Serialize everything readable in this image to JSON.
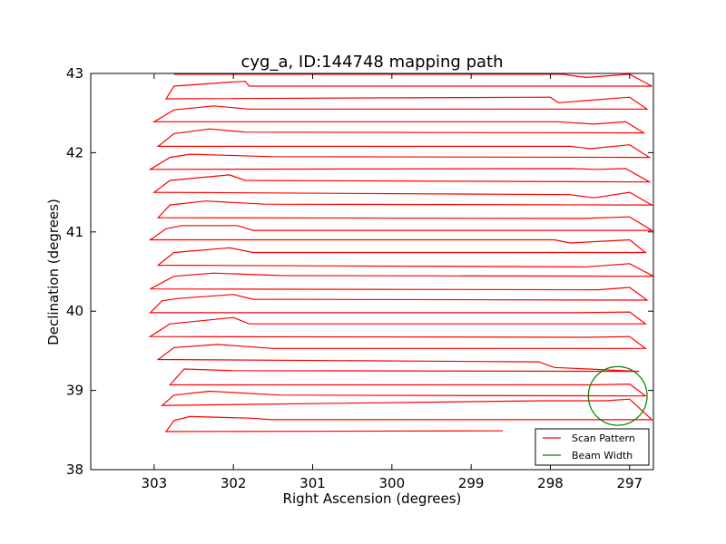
{
  "chart_data": {
    "type": "line",
    "title": "cyg_a, ID:144748 mapping path",
    "xlabel": "Right Ascension (degrees)",
    "ylabel": "Declination (degrees)",
    "xlim": [
      303.8,
      296.7
    ],
    "ylim": [
      38,
      43
    ],
    "x_ticks": [
      303,
      302,
      301,
      300,
      299,
      298,
      297
    ],
    "y_ticks": [
      38,
      39,
      40,
      41,
      42,
      43
    ],
    "grid": false,
    "legend_position": "lower-right",
    "series": [
      {
        "name": "Scan Pattern",
        "color": "#ff0000",
        "points": [
          [
            298.6,
            38.49
          ],
          [
            298.8,
            38.49
          ],
          [
            302.85,
            38.48
          ],
          [
            302.75,
            38.62
          ],
          [
            302.55,
            38.67
          ],
          [
            301.8,
            38.65
          ],
          [
            301.5,
            38.63
          ],
          [
            296.72,
            38.63
          ],
          [
            297.0,
            38.89
          ],
          [
            297.3,
            38.87
          ],
          [
            298.1,
            38.87
          ],
          [
            302.9,
            38.81
          ],
          [
            302.75,
            38.94
          ],
          [
            302.3,
            38.99
          ],
          [
            301.4,
            38.94
          ],
          [
            296.8,
            38.93
          ],
          [
            297.0,
            39.08
          ],
          [
            297.5,
            39.07
          ],
          [
            302.8,
            39.07
          ],
          [
            302.62,
            39.27
          ],
          [
            302.0,
            39.25
          ],
          [
            296.88,
            39.24
          ],
          [
            297.95,
            39.29
          ],
          [
            298.15,
            39.36
          ],
          [
            302.95,
            39.39
          ],
          [
            302.75,
            39.54
          ],
          [
            302.2,
            39.58
          ],
          [
            301.5,
            39.53
          ],
          [
            296.8,
            39.53
          ],
          [
            297.0,
            39.68
          ],
          [
            297.5,
            39.67
          ],
          [
            303.05,
            39.68
          ],
          [
            302.8,
            39.84
          ],
          [
            302.0,
            39.92
          ],
          [
            301.8,
            39.84
          ],
          [
            296.8,
            39.84
          ],
          [
            297.0,
            39.99
          ],
          [
            297.7,
            39.98
          ],
          [
            303.05,
            39.98
          ],
          [
            302.9,
            40.13
          ],
          [
            302.7,
            40.16
          ],
          [
            302.0,
            40.21
          ],
          [
            301.75,
            40.15
          ],
          [
            296.78,
            40.14
          ],
          [
            297.0,
            40.3
          ],
          [
            297.4,
            40.27
          ],
          [
            303.05,
            40.28
          ],
          [
            302.75,
            40.44
          ],
          [
            302.25,
            40.48
          ],
          [
            301.4,
            40.45
          ],
          [
            296.7,
            40.44
          ],
          [
            297.0,
            40.6
          ],
          [
            297.55,
            40.56
          ],
          [
            302.95,
            40.58
          ],
          [
            302.75,
            40.74
          ],
          [
            302.05,
            40.8
          ],
          [
            301.75,
            40.74
          ],
          [
            296.8,
            40.74
          ],
          [
            297.0,
            40.9
          ],
          [
            297.75,
            40.86
          ],
          [
            297.95,
            40.9
          ],
          [
            303.05,
            40.9
          ],
          [
            302.85,
            41.04
          ],
          [
            302.65,
            41.08
          ],
          [
            301.95,
            41.08
          ],
          [
            301.75,
            41.02
          ],
          [
            296.72,
            41.02
          ],
          [
            297.0,
            41.19
          ],
          [
            297.6,
            41.17
          ],
          [
            302.95,
            41.18
          ],
          [
            302.8,
            41.34
          ],
          [
            302.35,
            41.39
          ],
          [
            301.6,
            41.35
          ],
          [
            296.72,
            41.34
          ],
          [
            297.0,
            41.5
          ],
          [
            297.45,
            41.43
          ],
          [
            297.75,
            41.47
          ],
          [
            303.0,
            41.5
          ],
          [
            302.8,
            41.65
          ],
          [
            302.05,
            41.72
          ],
          [
            301.85,
            41.65
          ],
          [
            296.75,
            41.63
          ],
          [
            297.05,
            41.8
          ],
          [
            297.4,
            41.79
          ],
          [
            297.75,
            41.8
          ],
          [
            303.05,
            41.79
          ],
          [
            302.8,
            41.94
          ],
          [
            302.55,
            41.98
          ],
          [
            301.5,
            41.95
          ],
          [
            296.75,
            41.94
          ],
          [
            297.0,
            42.1
          ],
          [
            297.5,
            42.05
          ],
          [
            297.75,
            42.08
          ],
          [
            302.95,
            42.08
          ],
          [
            302.75,
            42.24
          ],
          [
            302.3,
            42.3
          ],
          [
            301.85,
            42.26
          ],
          [
            296.82,
            42.25
          ],
          [
            297.05,
            42.39
          ],
          [
            297.45,
            42.36
          ],
          [
            297.9,
            42.39
          ],
          [
            303.0,
            42.39
          ],
          [
            302.75,
            42.54
          ],
          [
            302.25,
            42.59
          ],
          [
            301.8,
            42.55
          ],
          [
            296.78,
            42.55
          ],
          [
            297.0,
            42.7
          ],
          [
            297.9,
            42.63
          ],
          [
            298.0,
            42.7
          ],
          [
            302.85,
            42.68
          ],
          [
            302.75,
            42.84
          ],
          [
            302.05,
            42.89
          ],
          [
            301.85,
            42.9
          ],
          [
            301.8,
            42.84
          ],
          [
            296.72,
            42.84
          ],
          [
            297.0,
            42.99
          ],
          [
            297.55,
            42.95
          ],
          [
            297.85,
            42.99
          ],
          [
            302.75,
            42.99
          ]
        ]
      },
      {
        "name": "Beam Width",
        "color": "#008000",
        "shape": "circle",
        "center": [
          297.15,
          38.93
        ],
        "radius": 0.37
      }
    ]
  }
}
